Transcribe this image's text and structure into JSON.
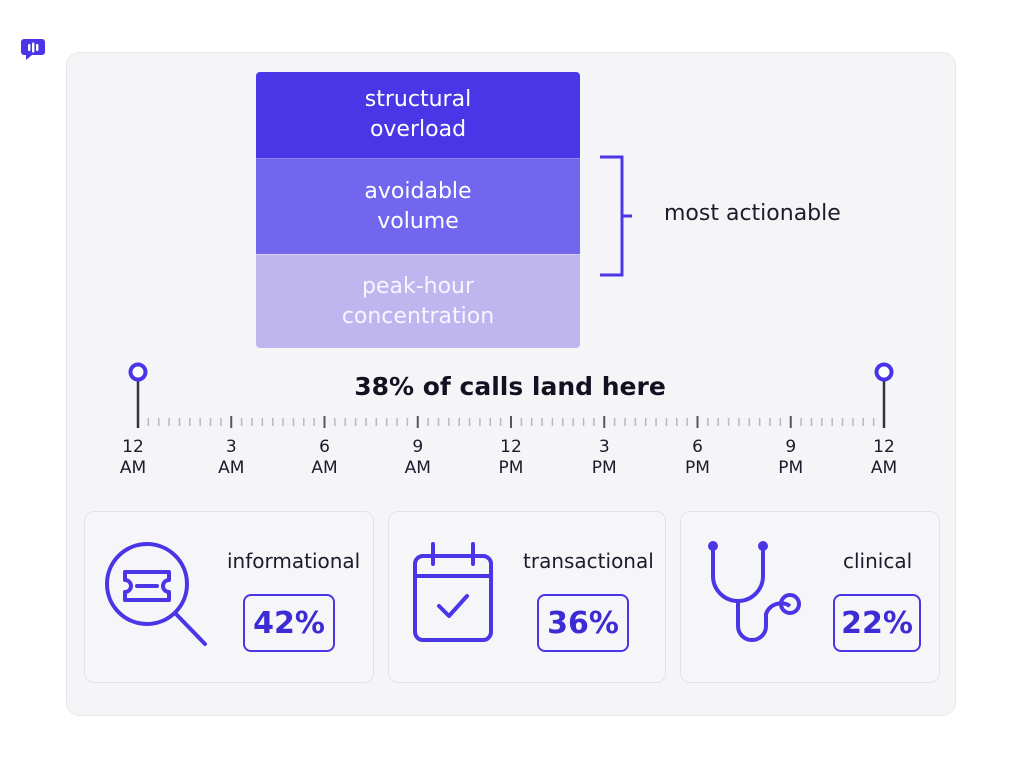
{
  "brand": {
    "logo_icon": "speech-bubble-logo-icon",
    "accent": "#4a36e6"
  },
  "stack": {
    "blocks": [
      {
        "label": "structural\noverload",
        "color": "#4a36e6"
      },
      {
        "label": "avoidable\nvolume",
        "color": "#7266ee"
      },
      {
        "label": "peak-hour\nconcentration",
        "color": "#bfb6ef"
      }
    ],
    "bracket_label": "most actionable"
  },
  "timeline": {
    "headline": "38% of calls land here",
    "ticks": [
      {
        "hour": "12",
        "period": "AM"
      },
      {
        "hour": "3",
        "period": "AM"
      },
      {
        "hour": "6",
        "period": "AM"
      },
      {
        "hour": "9",
        "period": "AM"
      },
      {
        "hour": "12",
        "period": "PM"
      },
      {
        "hour": "3",
        "period": "PM"
      },
      {
        "hour": "6",
        "period": "PM"
      },
      {
        "hour": "9",
        "period": "PM"
      },
      {
        "hour": "12",
        "period": "AM"
      }
    ]
  },
  "categories": [
    {
      "label": "informational",
      "percent": "42%",
      "icon": "ticket-magnifier-icon"
    },
    {
      "label": "transactional",
      "percent": "36%",
      "icon": "calendar-check-icon"
    },
    {
      "label": "clinical",
      "percent": "22%",
      "icon": "stethoscope-icon"
    }
  ]
}
